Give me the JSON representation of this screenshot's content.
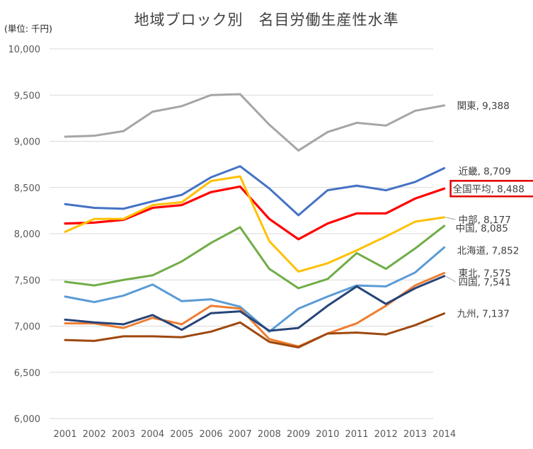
{
  "chart_data": {
    "type": "line",
    "title": "地域ブロック別　名目労働生産性水準",
    "unit_label": "(単位: 千円)",
    "xlabel": "",
    "ylabel": "",
    "categories": [
      "2001",
      "2002",
      "2003",
      "2004",
      "2005",
      "2006",
      "2007",
      "2008",
      "2009",
      "2010",
      "2011",
      "2012",
      "2013",
      "2014"
    ],
    "ylim": [
      6000,
      10000
    ],
    "yticks": [
      6000,
      6500,
      7000,
      7500,
      8000,
      8500,
      9000,
      9500,
      10000
    ],
    "ytick_labels": [
      "6,000",
      "6,500",
      "7,000",
      "7,500",
      "8,000",
      "8,500",
      "9,000",
      "9,500",
      "10,000"
    ],
    "grid": true,
    "legend": "inline-right",
    "series": [
      {
        "name": "関東",
        "end_label": "関東, 9,388",
        "color": "#A5A5A5",
        "values": [
          9050,
          9060,
          9110,
          9320,
          9380,
          9500,
          9510,
          9180,
          8900,
          9100,
          9200,
          9170,
          9330,
          9388
        ]
      },
      {
        "name": "近畿",
        "end_label": "近畿, 8,709",
        "color": "#4472C4",
        "values": [
          8320,
          8280,
          8270,
          8350,
          8420,
          8610,
          8730,
          8490,
          8200,
          8470,
          8520,
          8470,
          8560,
          8709
        ]
      },
      {
        "name": "全国平均",
        "end_label": "全国平均, 8,488",
        "color": "#FF0000",
        "highlight": true,
        "values": [
          8110,
          8120,
          8150,
          8280,
          8310,
          8450,
          8510,
          8160,
          7940,
          8110,
          8220,
          8220,
          8380,
          8488
        ]
      },
      {
        "name": "中部",
        "end_label": "中部, 8,177",
        "color": "#FFC000",
        "values": [
          8020,
          8160,
          8160,
          8310,
          8340,
          8570,
          8620,
          7920,
          7590,
          7680,
          7820,
          7970,
          8130,
          8177
        ]
      },
      {
        "name": "中国",
        "end_label": "中国, 8,085",
        "color": "#70AD47",
        "values": [
          7480,
          7440,
          7500,
          7550,
          7700,
          7900,
          8070,
          7620,
          7410,
          7510,
          7790,
          7620,
          7840,
          8085
        ]
      },
      {
        "name": "北海道",
        "end_label": "北海道, 7,852",
        "color": "#5B9BD5",
        "values": [
          7320,
          7260,
          7330,
          7450,
          7270,
          7290,
          7210,
          6940,
          7190,
          7320,
          7440,
          7430,
          7580,
          7852
        ]
      },
      {
        "name": "東北",
        "end_label": "東北, 7,575",
        "color": "#ED7D31",
        "values": [
          7030,
          7030,
          6980,
          7090,
          7020,
          7220,
          7190,
          6860,
          6780,
          6920,
          7030,
          7220,
          7440,
          7575
        ]
      },
      {
        "name": "四国",
        "end_label": "四国, 7,541",
        "color": "#264478",
        "values": [
          7070,
          7040,
          7020,
          7120,
          6960,
          7140,
          7160,
          6950,
          6980,
          7220,
          7430,
          7240,
          7410,
          7541
        ]
      },
      {
        "name": "九州",
        "end_label": "九州, 7,137",
        "color": "#9E480E",
        "values": [
          6850,
          6840,
          6890,
          6890,
          6880,
          6940,
          7040,
          6830,
          6770,
          6920,
          6930,
          6910,
          7010,
          7137
        ]
      }
    ]
  }
}
